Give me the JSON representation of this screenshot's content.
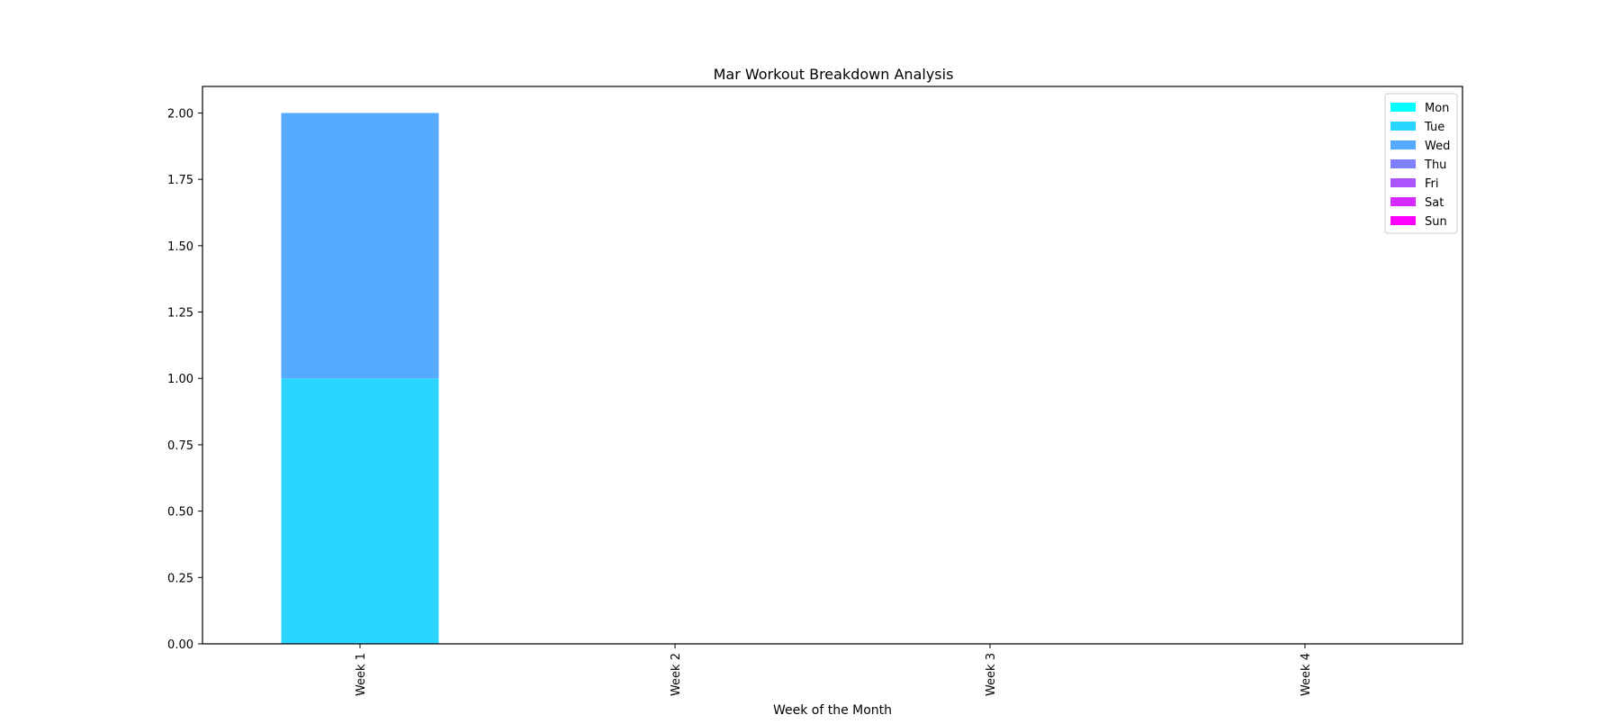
{
  "chart_data": {
    "type": "bar",
    "stacked": true,
    "title": "Mar Workout Breakdown Analysis",
    "xlabel": "Week of the Month",
    "ylabel": "",
    "categories": [
      "Week 1",
      "Week 2",
      "Week 3",
      "Week 4"
    ],
    "ylim": [
      0,
      2.1
    ],
    "yticks": [
      "0.00",
      "0.25",
      "0.50",
      "0.75",
      "1.00",
      "1.25",
      "1.50",
      "1.75",
      "2.00"
    ],
    "legend_position": "top-right",
    "grid": false,
    "series": [
      {
        "name": "Mon",
        "color": "#00ffff",
        "values": [
          0,
          0,
          0,
          0
        ]
      },
      {
        "name": "Tue",
        "color": "#2ad5ff",
        "values": [
          1,
          0,
          0,
          0
        ]
      },
      {
        "name": "Wed",
        "color": "#55aaff",
        "values": [
          1,
          0,
          0,
          0
        ]
      },
      {
        "name": "Thu",
        "color": "#7f80ff",
        "values": [
          0,
          0,
          0,
          0
        ]
      },
      {
        "name": "Fri",
        "color": "#aa55ff",
        "values": [
          0,
          0,
          0,
          0
        ]
      },
      {
        "name": "Sat",
        "color": "#d52aff",
        "values": [
          0,
          0,
          0,
          0
        ]
      },
      {
        "name": "Sun",
        "color": "#ff00ff",
        "values": [
          0,
          0,
          0,
          0
        ]
      }
    ]
  }
}
